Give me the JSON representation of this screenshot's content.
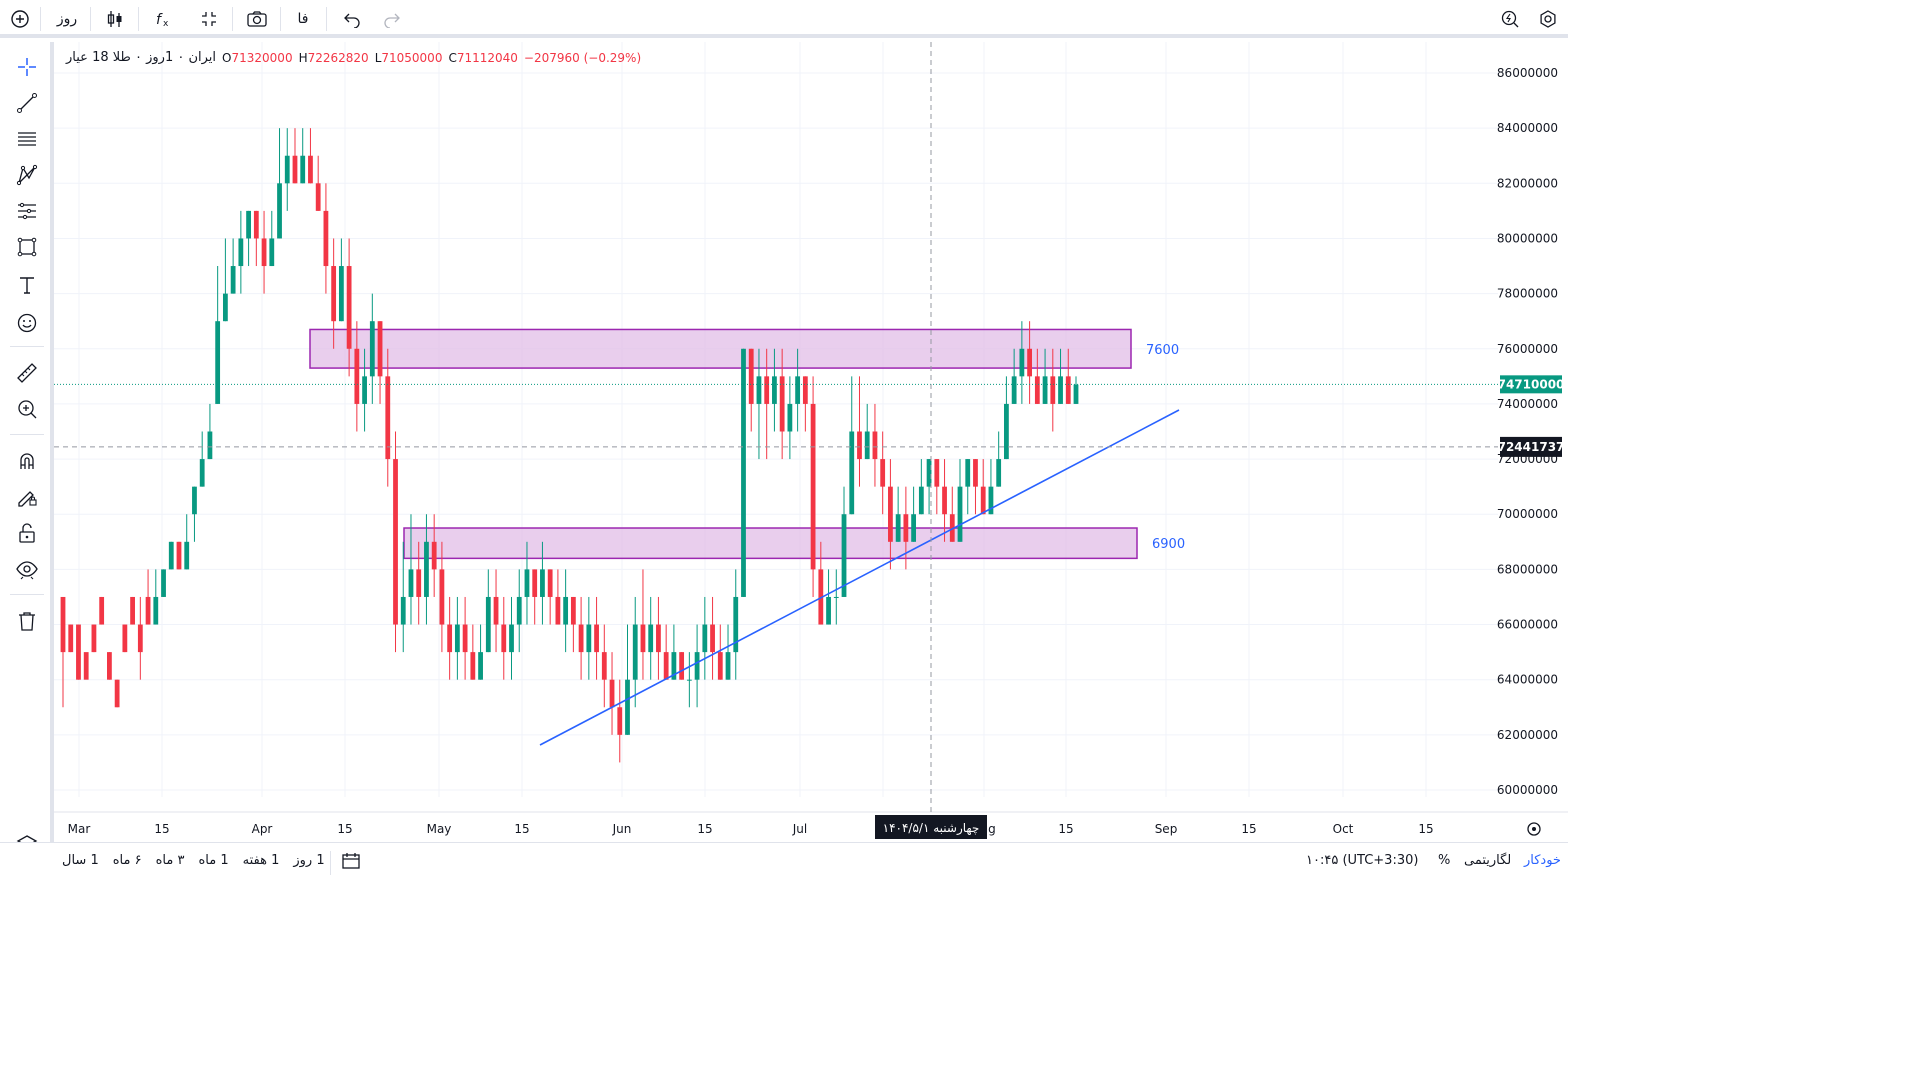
{
  "toolbar": {
    "interval": "روز",
    "language": "فا"
  },
  "legend": {
    "title": "ایران ۰ 1روز ۰ طلا 18 عیار",
    "open_label": "O",
    "open": "71320000",
    "high_label": "H",
    "high": "72262820",
    "low_label": "L",
    "low": "71050000",
    "close_label": "C",
    "close": "71112040",
    "change": "−207960 (−0.29%)"
  },
  "price_axis": {
    "ticks": [
      "86000000",
      "84000000",
      "82000000",
      "80000000",
      "78000000",
      "76000000",
      "74000000",
      "72000000",
      "70000000",
      "68000000",
      "66000000",
      "64000000",
      "62000000",
      "60000000"
    ],
    "last_price": "74710000",
    "crosshair_price": "72441737",
    "last_price_color": "#089981",
    "crosshair_color": "#131722"
  },
  "time_axis": {
    "ticks": [
      "Mar",
      "15",
      "Apr",
      "15",
      "May",
      "15",
      "Jun",
      "15",
      "Jul",
      "15",
      "Aug",
      "15",
      "Sep",
      "15",
      "Oct",
      "15"
    ],
    "crosshair_date": "چهارشنبه ۱۴۰۴/۵/۱"
  },
  "zones": [
    {
      "label": "7600",
      "from": 75300000,
      "to": 76700000
    },
    {
      "label": "6900",
      "from": 68400000,
      "to": 69500000
    }
  ],
  "colors": {
    "up": "#089981",
    "down": "#f23645",
    "zone_fill": "#e1bee7",
    "zone_border": "#9c27b0",
    "trend": "#2962ff",
    "label": "#2962ff"
  },
  "bottom": {
    "ranges": [
      "1 روز",
      "1 هفته",
      "1 ماه",
      "۳ ماه",
      "۶ ماه",
      "1 سال"
    ],
    "time": "۱۰:۴۵ (UTC+3:30)",
    "percent": "%",
    "log": "لگاریتمی",
    "auto": "خودکار"
  },
  "chart_data": {
    "type": "candlestick",
    "ylim": [
      60000000,
      86000000
    ],
    "x_range": [
      "Mar 1",
      "Oct 20"
    ],
    "candles": [
      [
        67,
        65,
        63,
        66
      ],
      [
        66,
        65,
        65,
        66
      ],
      [
        66,
        64,
        64,
        66
      ],
      [
        65,
        64,
        65,
        65
      ],
      [
        66,
        65,
        65,
        66
      ],
      [
        67,
        66,
        66,
        67
      ],
      [
        65,
        64,
        64,
        65
      ],
      [
        64,
        63,
        63,
        64
      ],
      [
        66,
        65,
        65,
        66
      ],
      [
        67,
        66,
        66,
        67
      ],
      [
        66,
        65,
        64,
        67
      ],
      [
        67,
        66,
        66,
        68
      ],
      [
        66,
        67,
        66,
        68
      ],
      [
        67,
        68,
        67,
        68
      ],
      [
        68,
        69,
        68,
        69
      ],
      [
        69,
        68,
        68,
        69
      ],
      [
        68,
        69,
        68,
        70
      ],
      [
        70,
        71,
        69,
        71
      ],
      [
        71,
        72,
        71,
        73
      ],
      [
        72,
        73,
        72,
        74
      ],
      [
        74,
        77,
        74,
        79
      ],
      [
        77,
        78,
        77,
        80
      ],
      [
        78,
        79,
        78,
        80
      ],
      [
        79,
        80,
        78,
        81
      ],
      [
        80,
        81,
        79,
        81
      ],
      [
        81,
        80,
        79,
        81
      ],
      [
        80,
        79,
        78,
        81
      ],
      [
        79,
        80,
        79,
        81
      ],
      [
        80,
        82,
        80,
        84
      ],
      [
        82,
        83,
        81,
        84
      ],
      [
        83,
        82,
        82,
        84
      ],
      [
        82,
        83,
        82,
        84
      ],
      [
        83,
        82,
        82,
        84
      ],
      [
        82,
        81,
        81,
        83
      ],
      [
        81,
        79,
        78,
        82
      ],
      [
        79,
        77,
        76,
        80
      ],
      [
        77,
        79,
        77,
        80
      ],
      [
        79,
        76,
        75,
        80
      ],
      [
        76,
        74,
        73,
        77
      ],
      [
        74,
        75,
        73,
        76
      ],
      [
        75,
        77,
        74,
        78
      ],
      [
        77,
        75,
        74,
        77
      ],
      [
        75,
        72,
        71,
        76
      ],
      [
        72,
        66,
        65,
        73
      ],
      [
        66,
        67,
        65,
        69
      ],
      [
        67,
        68,
        66,
        70
      ],
      [
        68,
        67,
        66,
        69
      ],
      [
        67,
        69,
        66,
        70
      ],
      [
        69,
        68,
        67,
        70
      ],
      [
        68,
        66,
        65,
        69
      ],
      [
        66,
        65,
        64,
        67
      ],
      [
        65,
        66,
        64,
        67
      ],
      [
        66,
        65,
        64,
        67
      ],
      [
        65,
        64,
        64,
        66
      ],
      [
        64,
        65,
        64,
        66
      ],
      [
        65,
        67,
        65,
        68
      ],
      [
        67,
        66,
        65,
        68
      ],
      [
        66,
        65,
        64,
        67
      ],
      [
        65,
        66,
        64,
        67
      ],
      [
        66,
        67,
        65,
        68
      ],
      [
        67,
        68,
        66,
        69
      ],
      [
        68,
        67,
        66,
        68
      ],
      [
        67,
        68,
        66,
        69
      ],
      [
        68,
        67,
        66,
        68
      ],
      [
        67,
        66,
        66,
        68
      ],
      [
        66,
        67,
        65,
        68
      ],
      [
        67,
        66,
        65,
        67
      ],
      [
        66,
        65,
        64,
        67
      ],
      [
        65,
        66,
        64,
        67
      ],
      [
        66,
        65,
        64,
        67
      ],
      [
        65,
        64,
        63,
        66
      ],
      [
        64,
        63,
        62,
        65
      ],
      [
        63,
        62,
        61,
        64
      ],
      [
        62,
        64,
        62,
        66
      ],
      [
        64,
        66,
        63,
        67
      ],
      [
        66,
        65,
        64,
        68
      ],
      [
        65,
        66,
        64,
        67
      ],
      [
        66,
        65,
        64,
        67
      ],
      [
        65,
        64,
        64,
        66
      ],
      [
        64,
        65,
        64,
        66
      ],
      [
        65,
        64,
        64,
        65
      ],
      [
        64,
        64,
        63,
        65
      ],
      [
        64,
        65,
        63,
        66
      ],
      [
        65,
        66,
        64,
        67
      ],
      [
        66,
        65,
        64,
        67
      ],
      [
        65,
        64,
        64,
        66
      ],
      [
        64,
        65,
        64,
        66
      ],
      [
        65,
        67,
        64,
        68
      ],
      [
        67,
        76,
        67,
        76
      ],
      [
        76,
        74,
        73,
        76
      ],
      [
        74,
        75,
        72,
        76
      ],
      [
        75,
        74,
        72,
        76
      ],
      [
        74,
        75,
        73,
        76
      ],
      [
        75,
        73,
        72,
        76
      ],
      [
        73,
        74,
        72,
        75
      ],
      [
        74,
        75,
        73,
        76
      ],
      [
        75,
        74,
        73,
        75
      ],
      [
        74,
        68,
        67,
        75
      ],
      [
        68,
        66,
        66,
        69
      ],
      [
        66,
        67,
        66,
        68
      ],
      [
        67,
        67,
        66,
        68
      ],
      [
        67,
        70,
        67,
        71
      ],
      [
        70,
        73,
        70,
        75
      ],
      [
        73,
        72,
        71,
        75
      ],
      [
        72,
        73,
        72,
        74
      ],
      [
        73,
        72,
        71,
        74
      ],
      [
        72,
        71,
        70,
        73
      ],
      [
        71,
        69,
        68,
        72
      ],
      [
        69,
        70,
        69,
        71
      ],
      [
        70,
        69,
        68,
        71
      ],
      [
        69,
        70,
        69,
        71
      ],
      [
        70,
        71,
        70,
        72
      ],
      [
        71,
        72,
        70,
        72
      ],
      [
        72,
        71,
        70,
        72
      ],
      [
        71,
        70,
        69,
        72
      ],
      [
        70,
        69,
        69,
        71
      ],
      [
        69,
        71,
        69,
        72
      ],
      [
        71,
        72,
        70,
        72
      ],
      [
        72,
        71,
        70,
        72
      ],
      [
        71,
        70,
        70,
        72
      ],
      [
        70,
        71,
        70,
        72
      ],
      [
        71,
        72,
        71,
        73
      ],
      [
        72,
        74,
        72,
        75
      ],
      [
        74,
        75,
        74,
        76
      ],
      [
        75,
        76,
        74,
        77
      ],
      [
        76,
        75,
        74,
        77
      ],
      [
        75,
        74,
        74,
        76
      ],
      [
        74,
        75,
        74,
        76
      ],
      [
        75,
        74,
        73,
        76
      ],
      [
        74,
        75,
        74,
        76
      ],
      [
        75,
        74,
        74,
        76
      ],
      [
        74,
        74.7,
        74,
        75
      ]
    ]
  }
}
